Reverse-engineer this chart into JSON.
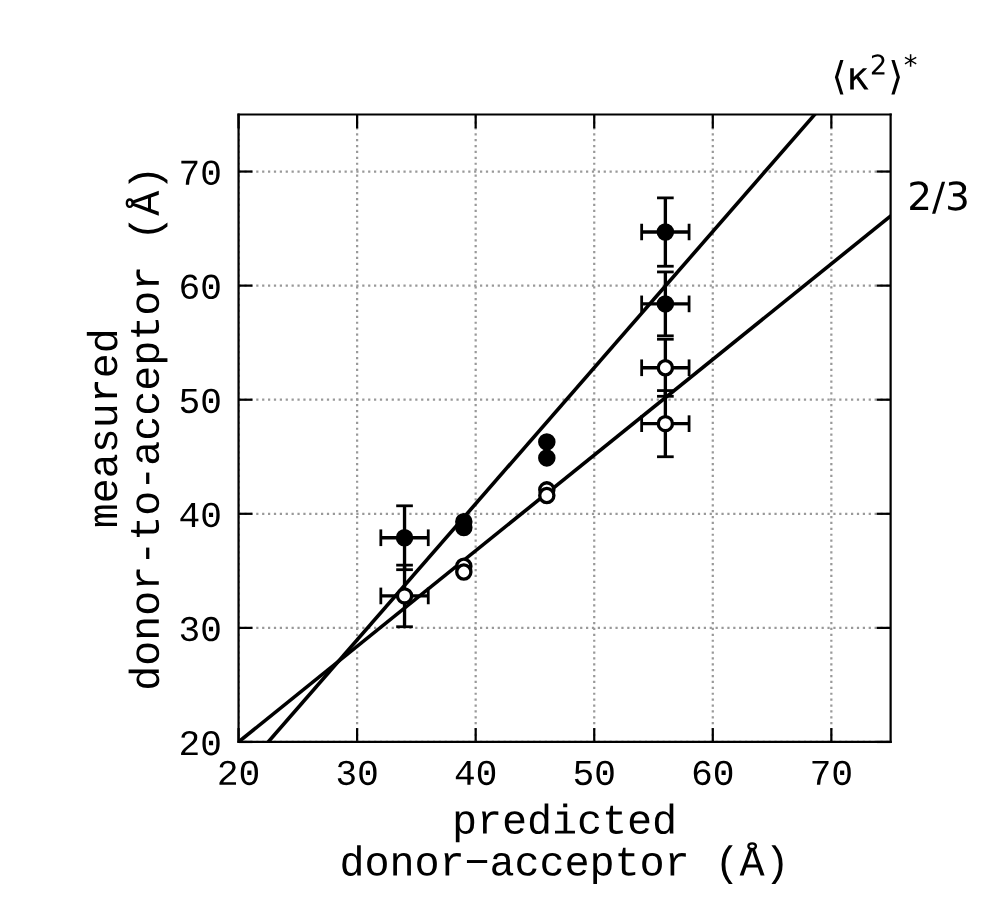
{
  "chart_data": {
    "type": "scatter",
    "xlabel": "predicted\ndonor−acceptor (Å)",
    "ylabel": "measured\ndonor-to-acceptor (Å)",
    "xlim": [
      20,
      75
    ],
    "ylim": [
      20,
      75
    ],
    "xticks": [
      20,
      30,
      40,
      50,
      60,
      70
    ],
    "yticks": [
      20,
      30,
      40,
      50,
      60,
      70
    ],
    "grid": true,
    "marker": "circle",
    "series": [
      {
        "color": "#000000",
        "x": [
          34,
          39,
          39,
          46,
          46,
          56,
          56
        ],
        "values": [
          37.9,
          39.3,
          38.8,
          46.3,
          44.9,
          64.7,
          58.4
        ],
        "errors": [
          2.8,
          null,
          null,
          null,
          null,
          3.0,
          2.8
        ],
        "xerrors": [
          2,
          null,
          null,
          null,
          null,
          2,
          2
        ]
      },
      {
        "color": "#ffffff",
        "x": [
          34,
          39,
          39,
          46,
          46,
          56,
          56
        ],
        "values": [
          32.8,
          35.4,
          34.9,
          42.1,
          41.6,
          52.8,
          47.9
        ],
        "errors": [
          2.7,
          null,
          null,
          null,
          null,
          2.5,
          2.9
        ],
        "xerrors": [
          2,
          null,
          null,
          null,
          null,
          2,
          2
        ]
      },
      {
        "type": "line",
        "color": "#000000",
        "marker": "none",
        "line_style": "solid",
        "x": [
          22.5,
          68.6
        ],
        "values": [
          20,
          75
        ]
      },
      {
        "type": "line",
        "color": "#000000",
        "marker": "none",
        "line_style": "solid",
        "x": [
          20,
          75
        ],
        "values": [
          20,
          66.1
        ]
      }
    ],
    "annotations": [
      {
        "text": "⟨κ$^{2}$⟩$^{*}$",
        "x": 68.6,
        "y": 75
      },
      {
        "text": "2/3",
        "x": 75,
        "y": 66.1
      }
    ]
  }
}
